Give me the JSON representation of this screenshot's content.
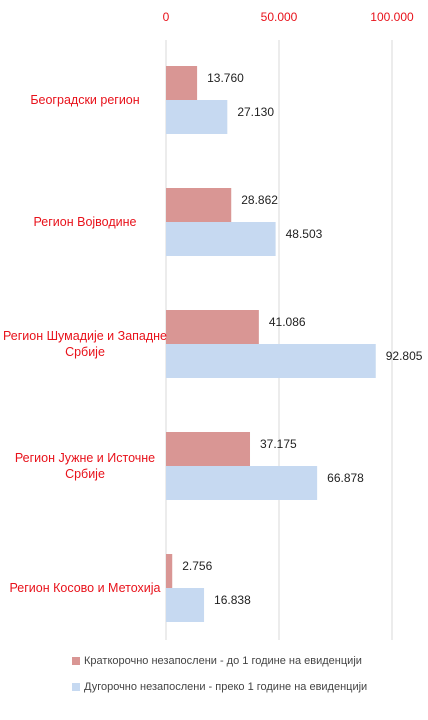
{
  "chart_data": {
    "type": "bar",
    "orientation": "horizontal",
    "categories": [
      "Београдски регион",
      "Регион Војводине",
      "Регион Шумадије и Западне Србије",
      "Регион Јужне и Источне Србије",
      "Регион Косово и Метохија"
    ],
    "series": [
      {
        "name": "Краткорочно незапослени - до 1 године на евиденцији",
        "color": "#d99694",
        "values": [
          13760,
          28862,
          41086,
          37175,
          2756
        ],
        "value_labels": [
          "13.760",
          "28.862",
          "41.086",
          "37.175",
          "2.756"
        ]
      },
      {
        "name": "Дугорочно незапослени - преко 1 године на евиденцији",
        "color": "#c6d9f1",
        "values": [
          27130,
          48503,
          92805,
          66878,
          16838
        ],
        "value_labels": [
          "27.130",
          "48.503",
          "92.805",
          "66.878",
          "16.838"
        ]
      }
    ],
    "xlim": [
      0,
      100000
    ],
    "xticks": [
      0,
      {
        "value": 50000,
        "label": "50.000"
      },
      {
        "value": 100000,
        "label": "100.000"
      }
    ],
    "grid": true,
    "legend": "bottom"
  }
}
